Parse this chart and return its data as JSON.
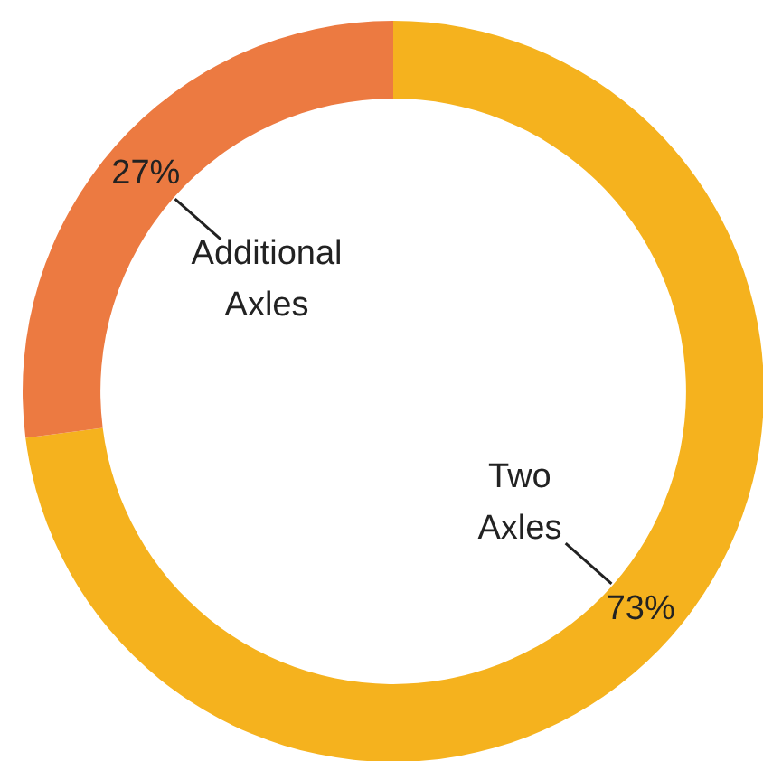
{
  "chart_data": {
    "type": "donut",
    "categories": [
      "Two Axles",
      "Additional Axles"
    ],
    "values": [
      73,
      27
    ],
    "colors": [
      "#f5b21e",
      "#ec7a41"
    ],
    "value_labels": [
      "73%",
      "27%"
    ]
  }
}
